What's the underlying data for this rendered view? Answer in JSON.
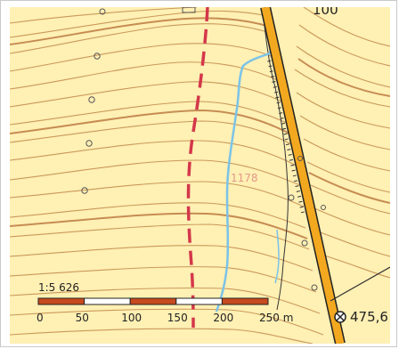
{
  "map": {
    "background": "#fff0b4",
    "contour_color": "#c08a4a",
    "index_contour_color": "#b8743a",
    "stream_color": "#7ac3e8",
    "road_fill": "#f2a81f",
    "road_edge": "#222222",
    "boundary_color": "#d4374b",
    "labels": {
      "top_edge_fragment": "100",
      "elevation_label": "1178",
      "spot_height": "475,6"
    },
    "scale": {
      "ratio": "1:5 626",
      "ticks": [
        "0",
        "50",
        "100",
        "150",
        "200",
        "250 m"
      ],
      "bar_colors": [
        "#c84a1e",
        "#ffffff"
      ]
    },
    "icons": [
      "survey-point-icon",
      "dot-marker-icon"
    ]
  }
}
